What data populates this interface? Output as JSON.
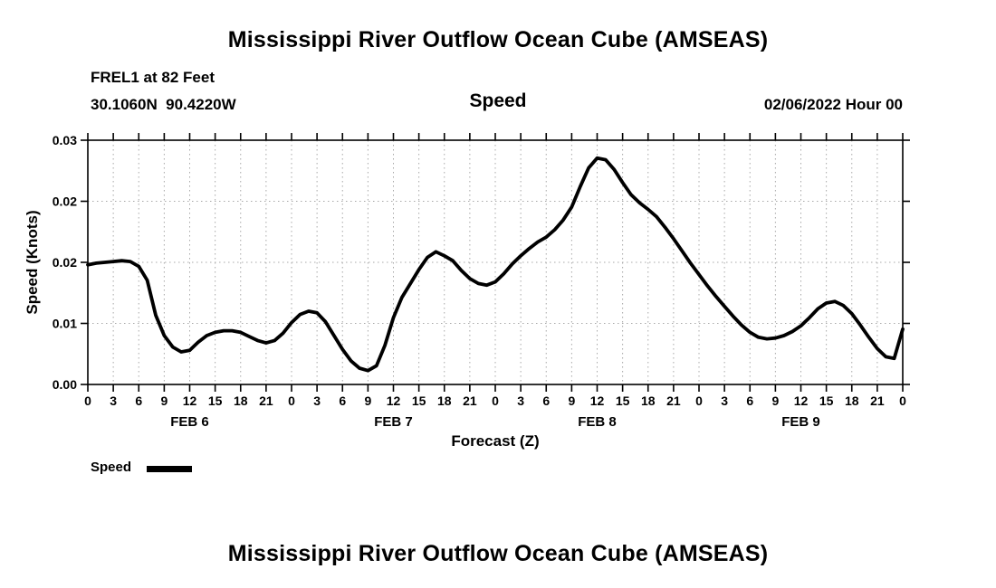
{
  "page": {
    "title_top": "Mississippi River Outflow Ocean Cube (AMSEAS)",
    "title_bottom": "Mississippi River Outflow Ocean Cube (AMSEAS)"
  },
  "header": {
    "station": "FREL1 at 82 Feet",
    "coordinates": "30.1060N  90.4220W",
    "variable": "Speed",
    "run_datetime": "02/06/2022 Hour 00"
  },
  "chart_data": {
    "type": "line",
    "title": "Speed",
    "xlabel": "Forecast (Z)",
    "ylabel": "Speed (Knots)",
    "xlim": [
      0,
      96
    ],
    "ylim": [
      0,
      0.03
    ],
    "grid": true,
    "grid_color": "#a8a8a8",
    "line_color": "#000000",
    "x_tick_step_hours": 3,
    "x_tick_labels": [
      "0",
      "3",
      "6",
      "9",
      "12",
      "15",
      "18",
      "21",
      "0",
      "3",
      "6",
      "9",
      "12",
      "15",
      "18",
      "21",
      "0",
      "3",
      "6",
      "9",
      "12",
      "15",
      "18",
      "21",
      "0",
      "3",
      "6",
      "9",
      "12",
      "15",
      "18",
      "21",
      "0"
    ],
    "y_ticks": [
      {
        "value": 0.0,
        "label": "0.00"
      },
      {
        "value": 0.0075,
        "label": "0.01"
      },
      {
        "value": 0.015,
        "label": "0.02"
      },
      {
        "value": 0.0225,
        "label": "0.02"
      },
      {
        "value": 0.03,
        "label": "0.03"
      }
    ],
    "day_labels": [
      {
        "label": "FEB 6",
        "hour": 12
      },
      {
        "label": "FEB 7",
        "hour": 36
      },
      {
        "label": "FEB 8",
        "hour": 60
      },
      {
        "label": "FEB 9",
        "hour": 84
      }
    ],
    "legend": [
      {
        "label": "Speed",
        "color": "#000000"
      }
    ],
    "series": [
      {
        "name": "Speed",
        "units": "Knots",
        "x_start_hour": 0,
        "x_step_hours": 1,
        "values": [
          0.0147,
          0.0149,
          0.015,
          0.0151,
          0.0152,
          0.0151,
          0.0145,
          0.0128,
          0.0085,
          0.006,
          0.0046,
          0.004,
          0.0042,
          0.0052,
          0.006,
          0.0064,
          0.0066,
          0.0066,
          0.0064,
          0.0059,
          0.0054,
          0.0051,
          0.0054,
          0.0063,
          0.0076,
          0.0086,
          0.009,
          0.0088,
          0.0077,
          0.006,
          0.0043,
          0.0029,
          0.002,
          0.0017,
          0.0023,
          0.0048,
          0.0082,
          0.0107,
          0.0124,
          0.0141,
          0.0156,
          0.0163,
          0.0158,
          0.0152,
          0.014,
          0.013,
          0.0124,
          0.0122,
          0.0126,
          0.0136,
          0.0148,
          0.0158,
          0.0167,
          0.0175,
          0.0181,
          0.019,
          0.0202,
          0.0218,
          0.0243,
          0.0266,
          0.0278,
          0.0276,
          0.0264,
          0.0248,
          0.0233,
          0.0223,
          0.0215,
          0.0206,
          0.0193,
          0.0179,
          0.0164,
          0.0149,
          0.0135,
          0.0121,
          0.0108,
          0.0096,
          0.0084,
          0.0073,
          0.0064,
          0.0058,
          0.0056,
          0.0057,
          0.006,
          0.0065,
          0.0072,
          0.0082,
          0.0093,
          0.01,
          0.0102,
          0.0097,
          0.0087,
          0.0073,
          0.0058,
          0.0044,
          0.0034,
          0.0032,
          0.0068
        ]
      }
    ]
  }
}
